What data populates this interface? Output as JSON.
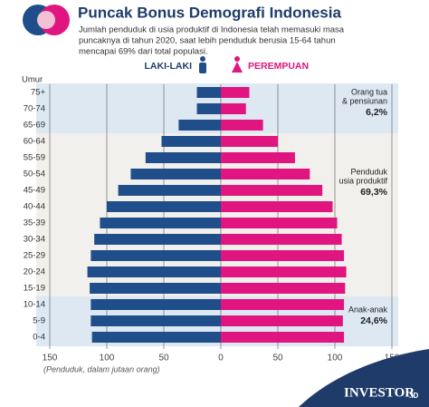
{
  "chart_data": {
    "type": "pyramid",
    "title": "Puncak Bonus Demografi Indonesia",
    "subtitle": [
      "Jumlah penduduk di usia produktif di Indonesia telah memasuki masa",
      "puncaknya di tahun 2020, saat lebih penduduk berusia 15-64 tahun",
      "mencapai 69% dari total populasi."
    ],
    "y_label": "Umur",
    "x_label": "(Penduduk, dalam jutaan orang)",
    "categories": [
      "75+",
      "70-74",
      "65-69",
      "60-64",
      "55-59",
      "50-54",
      "45-49",
      "40-44",
      "35-39",
      "30-34",
      "25-29",
      "20-24",
      "15-19",
      "10-14",
      "5-9",
      "0-4"
    ],
    "series": [
      {
        "name": "LAKI-LAKI",
        "color": "#1f4e8a",
        "values": [
          -21,
          -21,
          -37,
          -52,
          -66,
          -79,
          -90,
          -100,
          -106,
          -111,
          -114,
          -117,
          -115,
          -114,
          -114,
          -113
        ]
      },
      {
        "name": "PEREMPUAN",
        "color": "#e0157f",
        "values": [
          25,
          22,
          37,
          50,
          65,
          78,
          89,
          98,
          102,
          106,
          108,
          110,
          109,
          108,
          107,
          108
        ]
      }
    ],
    "xlim": [
      -150,
      150
    ],
    "xticks": [
      {
        "value": -150,
        "label": "150"
      },
      {
        "value": -100,
        "label": "100"
      },
      {
        "value": -50,
        "label": "50"
      },
      0,
      50,
      100,
      150
    ],
    "grid": true,
    "annotations": [
      {
        "lines": [
          "Orang tua",
          "& pensiunan"
        ],
        "value": "6,2%"
      },
      {
        "lines": [
          "Penduduk",
          "usia produktif"
        ],
        "value": "69,3%"
      },
      {
        "lines": [
          "Anak-anak"
        ],
        "value": "24,6%"
      }
    ],
    "brand": "INVESTOR",
    "brand_suffix": ".ID"
  }
}
